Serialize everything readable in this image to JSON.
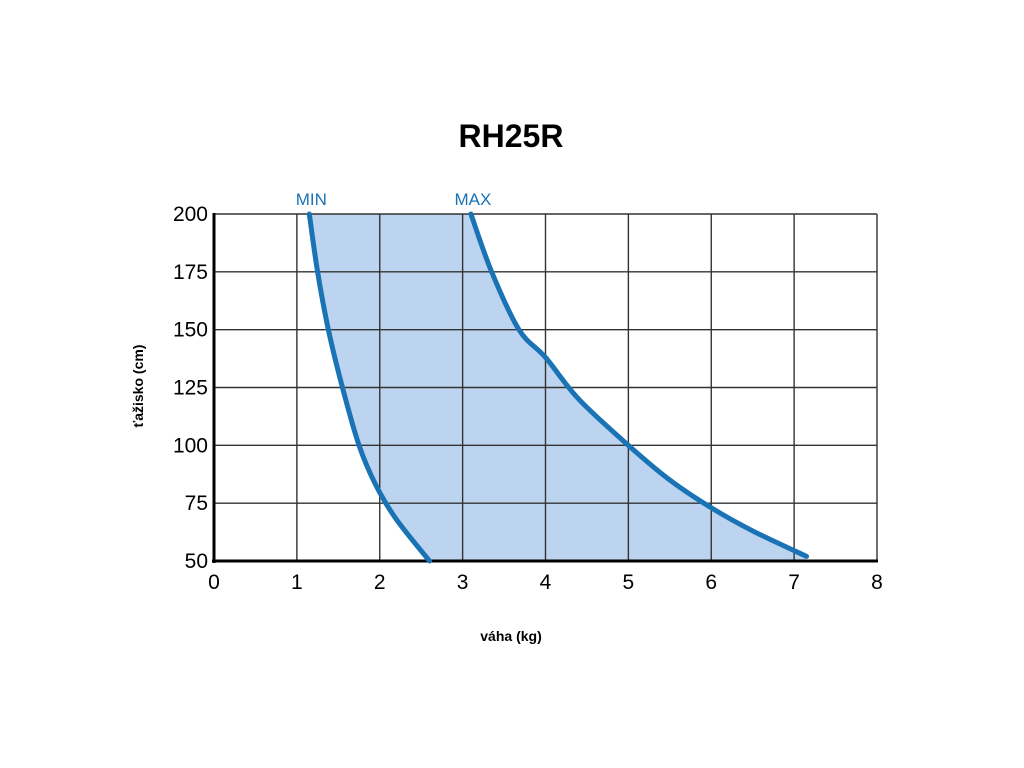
{
  "chart_data": {
    "type": "area",
    "title": "RH25R",
    "xlabel": "váha (kg)",
    "ylabel": "ťažisko (cm)",
    "xlim": [
      0,
      8
    ],
    "ylim": [
      50,
      200
    ],
    "x_ticks": [
      "0",
      "1",
      "2",
      "3",
      "4",
      "5",
      "6",
      "7",
      "8"
    ],
    "y_ticks": [
      "50",
      "75",
      "100",
      "125",
      "150",
      "175",
      "200"
    ],
    "grid": true,
    "fill_between": [
      "MIN",
      "MAX"
    ],
    "series": [
      {
        "name": "MIN",
        "points": [
          [
            1.15,
            200
          ],
          [
            1.25,
            175
          ],
          [
            1.38,
            150
          ],
          [
            1.55,
            125
          ],
          [
            1.75,
            100
          ],
          [
            1.95,
            83
          ],
          [
            2.2,
            68
          ],
          [
            2.6,
            50
          ]
        ]
      },
      {
        "name": "MAX",
        "points": [
          [
            3.1,
            200
          ],
          [
            3.35,
            175
          ],
          [
            3.68,
            150
          ],
          [
            4.0,
            138
          ],
          [
            4.4,
            120
          ],
          [
            5.0,
            100
          ],
          [
            5.5,
            85
          ],
          [
            6.0,
            73
          ],
          [
            6.5,
            63
          ],
          [
            7.15,
            52
          ]
        ]
      }
    ],
    "colors": {
      "line": "#1a73b5",
      "fill": "#bcd4ef",
      "grid": "#333333",
      "axis": "#000000"
    }
  }
}
